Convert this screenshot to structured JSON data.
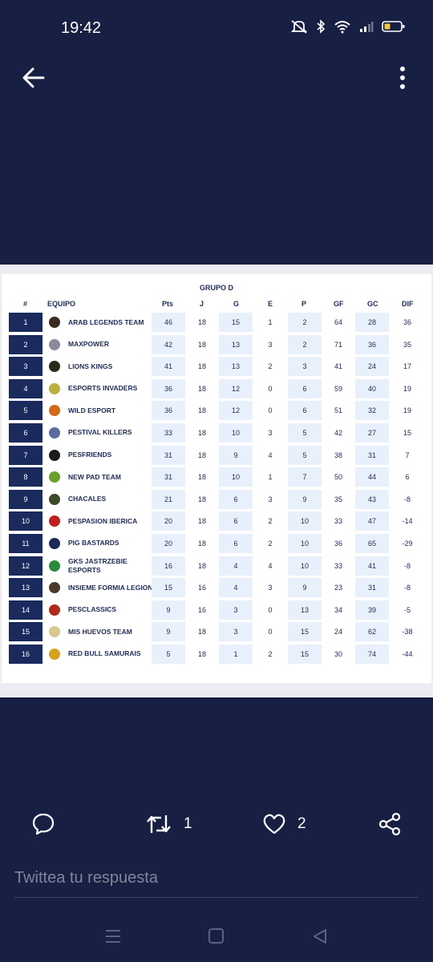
{
  "status": {
    "time": "19:42"
  },
  "table": {
    "group": "GRUPO D",
    "headers": {
      "rank": "#",
      "team": "EQUIPO",
      "pts": "Pts",
      "j": "J",
      "g": "G",
      "e": "E",
      "p": "P",
      "gf": "GF",
      "gc": "GC",
      "dif": "DIF"
    },
    "rows": [
      {
        "rank": "1",
        "team": "ARAB LEGENDS TEAM",
        "pts": "46",
        "j": "18",
        "g": "15",
        "e": "1",
        "p": "2",
        "gf": "64",
        "gc": "28",
        "dif": "36",
        "logo_color": "#3a2a20"
      },
      {
        "rank": "2",
        "team": "MAXPOWER",
        "pts": "42",
        "j": "18",
        "g": "13",
        "e": "3",
        "p": "2",
        "gf": "71",
        "gc": "36",
        "dif": "35",
        "logo_color": "#8a8a9a"
      },
      {
        "rank": "3",
        "team": "LIONS KINGS",
        "pts": "41",
        "j": "18",
        "g": "13",
        "e": "2",
        "p": "3",
        "gf": "41",
        "gc": "24",
        "dif": "17",
        "logo_color": "#2a2a1a"
      },
      {
        "rank": "4",
        "team": "ESPORTS INVADERS",
        "pts": "36",
        "j": "18",
        "g": "12",
        "e": "0",
        "p": "6",
        "gf": "59",
        "gc": "40",
        "dif": "19",
        "logo_color": "#b8b040"
      },
      {
        "rank": "5",
        "team": "WILD ESPORT",
        "pts": "36",
        "j": "18",
        "g": "12",
        "e": "0",
        "p": "6",
        "gf": "51",
        "gc": "32",
        "dif": "19",
        "logo_color": "#d06a1a"
      },
      {
        "rank": "6",
        "team": "PESTIVAL KILLERS",
        "pts": "33",
        "j": "18",
        "g": "10",
        "e": "3",
        "p": "5",
        "gf": "42",
        "gc": "27",
        "dif": "15",
        "logo_color": "#5a6a9a"
      },
      {
        "rank": "7",
        "team": "PESFRIENDS",
        "pts": "31",
        "j": "18",
        "g": "9",
        "e": "4",
        "p": "5",
        "gf": "38",
        "gc": "31",
        "dif": "7",
        "logo_color": "#1a1a1a"
      },
      {
        "rank": "8",
        "team": "NEW PAD TEAM",
        "pts": "31",
        "j": "18",
        "g": "10",
        "e": "1",
        "p": "7",
        "gf": "50",
        "gc": "44",
        "dif": "6",
        "logo_color": "#6aa02a"
      },
      {
        "rank": "9",
        "team": "CHACALES",
        "pts": "21",
        "j": "18",
        "g": "6",
        "e": "3",
        "p": "9",
        "gf": "35",
        "gc": "43",
        "dif": "-8",
        "logo_color": "#3a4a2a"
      },
      {
        "rank": "10",
        "team": "PESPASION IBERICA",
        "pts": "20",
        "j": "18",
        "g": "6",
        "e": "2",
        "p": "10",
        "gf": "33",
        "gc": "47",
        "dif": "-14",
        "logo_color": "#c02020"
      },
      {
        "rank": "11",
        "team": "PIG BASTARDS",
        "pts": "20",
        "j": "18",
        "g": "6",
        "e": "2",
        "p": "10",
        "gf": "36",
        "gc": "65",
        "dif": "-29",
        "logo_color": "#1a2a5a"
      },
      {
        "rank": "12",
        "team": "GKS JASTRZEBIE ESPORTS",
        "pts": "16",
        "j": "18",
        "g": "4",
        "e": "4",
        "p": "10",
        "gf": "33",
        "gc": "41",
        "dif": "-8",
        "logo_color": "#2a8a3a"
      },
      {
        "rank": "13",
        "team": "INSIEME FORMIA LEGION",
        "pts": "15",
        "j": "16",
        "g": "4",
        "e": "3",
        "p": "9",
        "gf": "23",
        "gc": "31",
        "dif": "-8",
        "logo_color": "#4a3a2a"
      },
      {
        "rank": "14",
        "team": "PESCLASSICS",
        "pts": "9",
        "j": "16",
        "g": "3",
        "e": "0",
        "p": "13",
        "gf": "34",
        "gc": "39",
        "dif": "-5",
        "logo_color": "#b02a1a"
      },
      {
        "rank": "15",
        "team": "MIS HUEVOS TEAM",
        "pts": "9",
        "j": "18",
        "g": "3",
        "e": "0",
        "p": "15",
        "gf": "24",
        "gc": "62",
        "dif": "-38",
        "logo_color": "#d8c890"
      },
      {
        "rank": "16",
        "team": "RED BULL SAMURAIS",
        "pts": "5",
        "j": "18",
        "g": "1",
        "e": "2",
        "p": "15",
        "gf": "30",
        "gc": "74",
        "dif": "-44",
        "logo_color": "#d8a020"
      }
    ]
  },
  "actions": {
    "retweets": "1",
    "likes": "2"
  },
  "reply": {
    "placeholder": "Twittea tu respuesta"
  },
  "colors": {
    "background": "#172042",
    "rank_cell": "#1b2a5c",
    "shaded_cell": "#e8f1fb",
    "text_dark": "#1e2b55"
  }
}
